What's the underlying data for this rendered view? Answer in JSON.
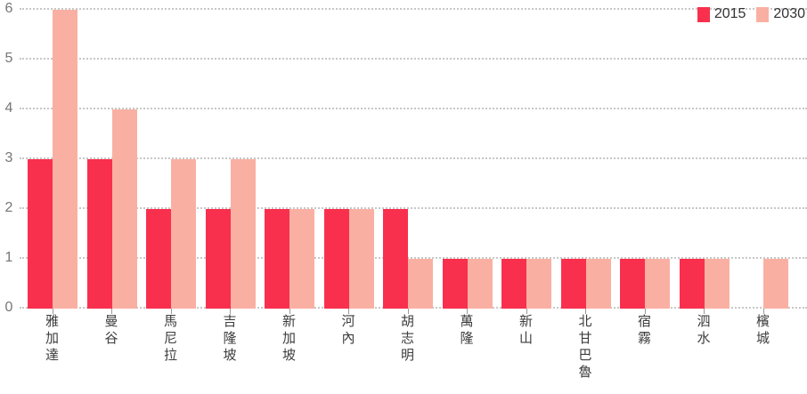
{
  "chart_data": {
    "type": "bar",
    "title": "",
    "xlabel": "",
    "ylabel": "",
    "categories": [
      "雅加達",
      "曼谷",
      "馬尼拉",
      "吉隆坡",
      "新加坡",
      "河內",
      "胡志明",
      "萬隆",
      "新山",
      "北甘巴魯",
      "宿霧",
      "泗水",
      "檳城"
    ],
    "series": [
      {
        "name": "2015",
        "color": "#f8304e",
        "values": [
          3,
          3,
          2,
          2,
          2,
          2,
          2,
          1,
          1,
          1,
          1,
          1,
          0
        ]
      },
      {
        "name": "2030",
        "color": "#f9b0a3",
        "values": [
          6,
          4,
          3,
          3,
          2,
          2,
          1,
          1,
          1,
          1,
          1,
          1,
          1
        ]
      }
    ],
    "ylim": [
      0,
      6
    ],
    "yticks": [
      0,
      1,
      2,
      3,
      4,
      5,
      6
    ],
    "grid": "horizontal-dotted",
    "legend_position": "top-right"
  },
  "legend": {
    "items": [
      {
        "label": "2015",
        "color": "#f8304e"
      },
      {
        "label": "2030",
        "color": "#f9b0a3"
      }
    ]
  },
  "colors": {
    "series_2015": "#f8304e",
    "series_2030": "#f9b0a3",
    "gridline": "#c7c7c7",
    "y_tick_label": "#767676",
    "x_category_label": "#3d3d3d",
    "axis_tick": "#999999",
    "legend_text": "#333333",
    "background": "#ffffff"
  }
}
